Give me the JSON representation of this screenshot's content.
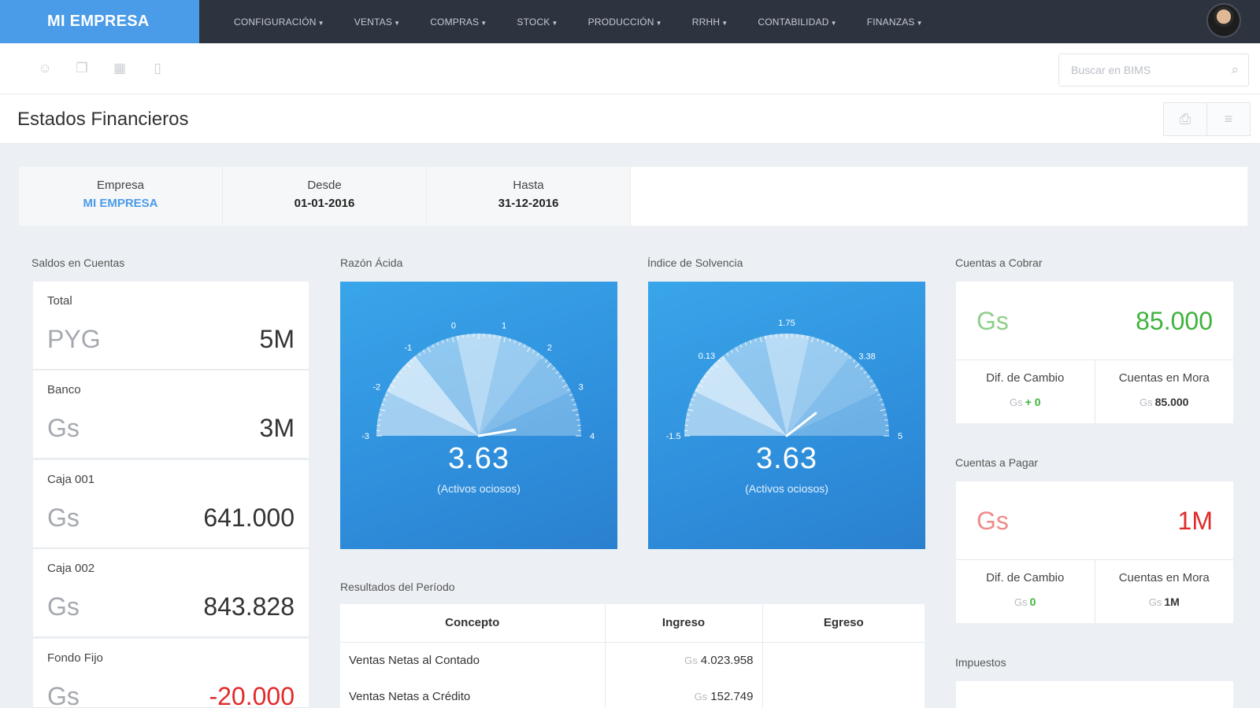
{
  "brand": "MI EMPRESA",
  "nav": [
    "CONFIGURACIÓN",
    "VENTAS",
    "COMPRAS",
    "STOCK",
    "PRODUCCIÓN",
    "RRHH",
    "CONTABILIDAD",
    "FINANZAS"
  ],
  "search": {
    "placeholder": "Buscar en BIMS"
  },
  "page_title": "Estados Financieros",
  "filters": {
    "empresa_label": "Empresa",
    "empresa_value": "MI EMPRESA",
    "desde_label": "Desde",
    "desde_value": "01-01-2016",
    "hasta_label": "Hasta",
    "hasta_value": "31-12-2016"
  },
  "saldos": {
    "title": "Saldos en Cuentas",
    "items": [
      {
        "name": "Total",
        "currency": "PYG",
        "amount": "5M"
      },
      {
        "name": "Banco",
        "currency": "Gs",
        "amount": "3M"
      },
      {
        "name": "Caja 001",
        "currency": "Gs",
        "amount": "641.000"
      },
      {
        "name": "Caja 002",
        "currency": "Gs",
        "amount": "843.828"
      },
      {
        "name": "Fondo Fijo",
        "currency": "Gs",
        "amount": "-20.000"
      }
    ]
  },
  "razon_acida": {
    "title": "Razón Ácida",
    "value": "3.63",
    "subtitle": "(Activos ociosos)",
    "min": -3,
    "max": 4,
    "ticks": [
      "-3",
      "-2",
      "-1",
      "0",
      "1",
      "2",
      "3",
      "4"
    ],
    "needle_value": 3.63
  },
  "indice_solvencia": {
    "title": "Índice de Solvencia",
    "value": "3.63",
    "subtitle": "(Activos ociosos)",
    "min": -1.5,
    "max": 5,
    "ticks": [
      "-1.5",
      "0.13",
      "1.75",
      "3.38",
      "5"
    ],
    "needle_value": 3.63
  },
  "resultados": {
    "title": "Resultados del Período",
    "headers": [
      "Concepto",
      "Ingreso",
      "Egreso"
    ],
    "rows": [
      {
        "concepto": "Ventas Netas al Contado",
        "currency": "Gs",
        "ingreso": "4.023.958",
        "egreso": ""
      },
      {
        "concepto": "Ventas Netas a Crédito",
        "currency": "Gs",
        "ingreso": "152.749",
        "egreso": ""
      }
    ]
  },
  "cobrar": {
    "title": "Cuentas a Cobrar",
    "currency": "Gs",
    "amount": "85.000",
    "dif_label": "Dif. de Cambio",
    "dif_currency": "Gs",
    "dif_value": "+ 0",
    "mora_label": "Cuentas en Mora",
    "mora_currency": "Gs",
    "mora_value": "85.000"
  },
  "pagar": {
    "title": "Cuentas a Pagar",
    "currency": "Gs",
    "amount": "1M",
    "dif_label": "Dif. de Cambio",
    "dif_currency": "Gs",
    "dif_value": "0",
    "mora_label": "Cuentas en Mora",
    "mora_currency": "Gs",
    "mora_value": "1M"
  },
  "impuestos": {
    "title": "Impuestos"
  }
}
